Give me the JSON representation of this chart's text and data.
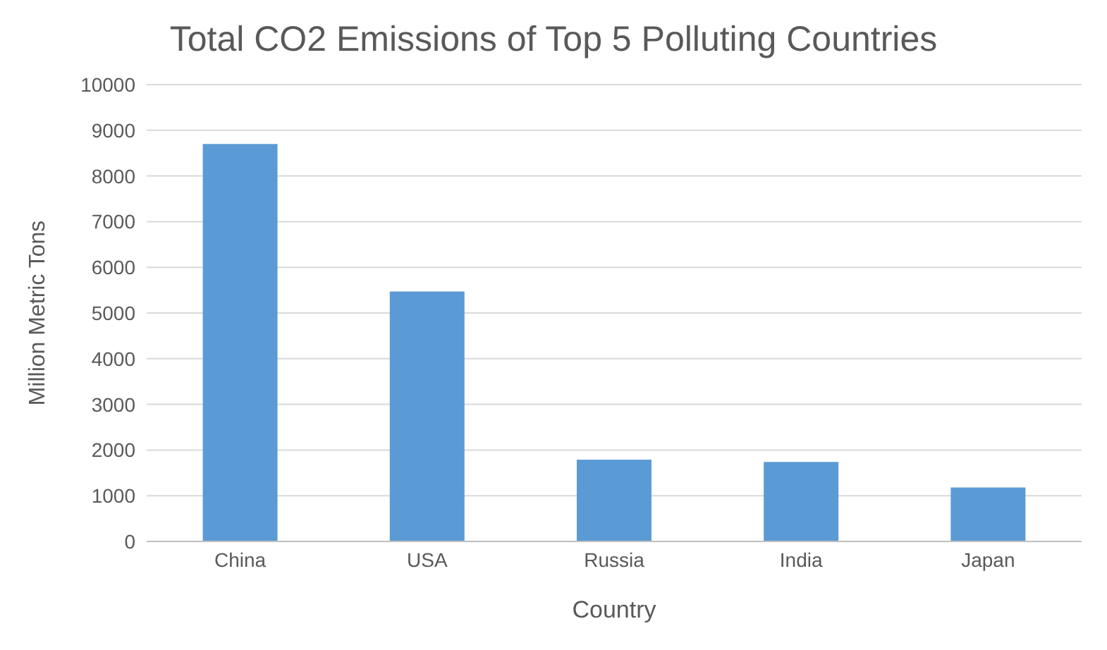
{
  "chart_data": {
    "type": "bar",
    "title": "Total CO2 Emissions of Top 5 Polluting Countries",
    "xlabel": "Country",
    "ylabel": "Million Metric Tons",
    "categories": [
      "China",
      "USA",
      "Russia",
      "India",
      "Japan"
    ],
    "values": [
      8700,
      5470,
      1790,
      1740,
      1180
    ],
    "color": "#5b9bd5",
    "ylim": [
      0,
      10000
    ],
    "yticks": [
      0,
      1000,
      2000,
      3000,
      4000,
      5000,
      6000,
      7000,
      8000,
      9000,
      10000
    ],
    "grid": "y"
  }
}
